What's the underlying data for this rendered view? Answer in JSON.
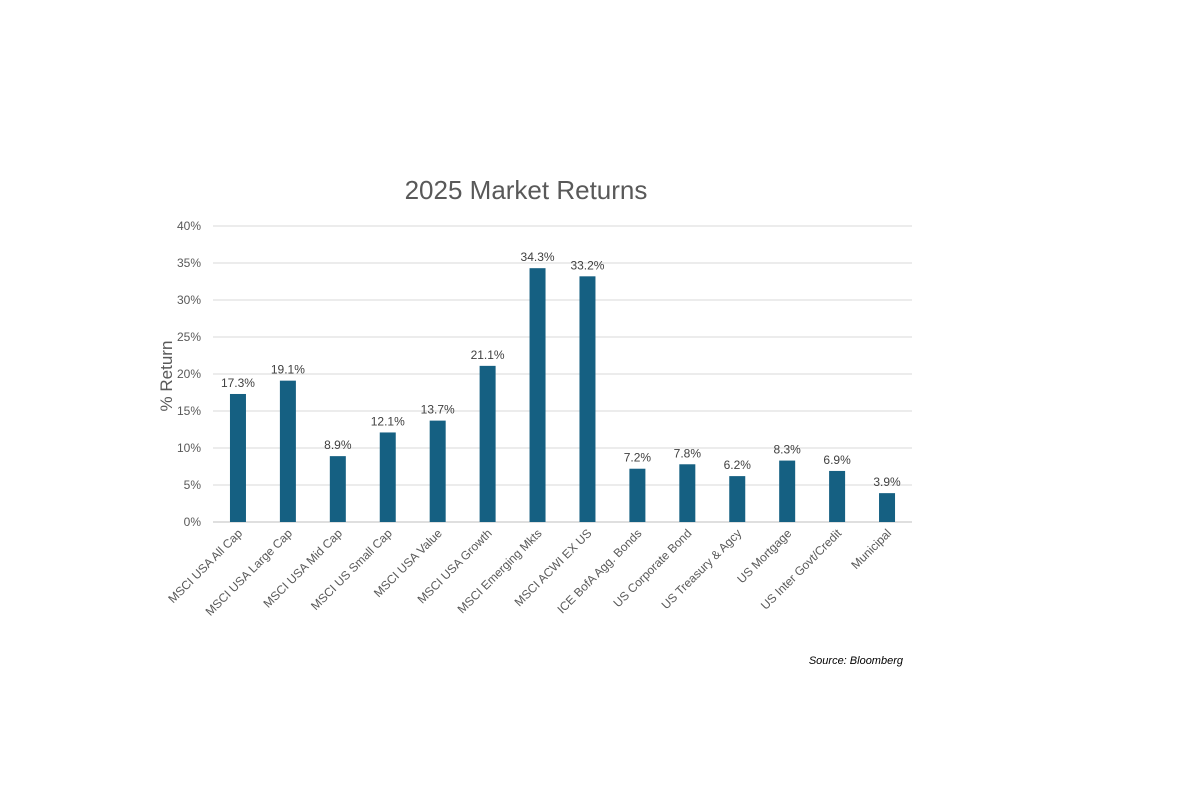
{
  "chart_data": {
    "type": "bar",
    "title": "2025 Market Returns",
    "xlabel": "",
    "ylabel": "% Return",
    "ylim": [
      0,
      40
    ],
    "yticks": [
      "0%",
      "5%",
      "10%",
      "15%",
      "20%",
      "25%",
      "30%",
      "35%",
      "40%"
    ],
    "grid": true,
    "categories": [
      "MSCI USA All Cap",
      "MSCI USA Large Cap",
      "MSCI USA Mid Cap",
      "MSCI US Small Cap",
      "MSCI USA Value",
      "MSCI USA Growth",
      "MSCI Emerging Mkts",
      "MSCI ACWI EX US",
      "ICE BofA Agg. Bonds",
      "US Corporate Bond",
      "US Treasury & Agcy",
      "US Mortgage",
      "US Inter Govt/Credit",
      "Municipal"
    ],
    "values": [
      17.3,
      19.1,
      8.9,
      12.1,
      13.7,
      21.1,
      34.3,
      33.2,
      7.2,
      7.8,
      6.2,
      8.3,
      6.9,
      3.9
    ],
    "data_labels": [
      "17.3%",
      "19.1%",
      "8.9%",
      "12.1%",
      "13.7%",
      "21.1%",
      "34.3%",
      "33.2%",
      "7.2%",
      "7.8%",
      "6.2%",
      "8.3%",
      "6.9%",
      "3.9%"
    ],
    "bar_color": "#156082",
    "source": "Source: Bloomberg"
  }
}
